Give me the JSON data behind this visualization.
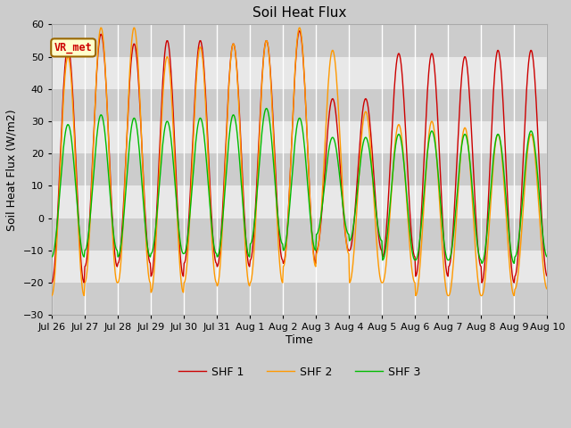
{
  "title": "Soil Heat Flux",
  "ylabel": "Soil Heat Flux (W/m2)",
  "xlabel": "Time",
  "ylim": [
    -30,
    60
  ],
  "yticks": [
    -30,
    -20,
    -10,
    0,
    10,
    20,
    30,
    40,
    50,
    60
  ],
  "x_tick_labels": [
    "Jul 26",
    "Jul 27",
    "Jul 28",
    "Jul 29",
    "Jul 30",
    "Jul 31",
    "Aug 1",
    "Aug 2",
    "Aug 3",
    "Aug 4",
    "Aug 5",
    "Aug 6",
    "Aug 7",
    "Aug 8",
    "Aug 9",
    "Aug 10"
  ],
  "shf1_color": "#cc0000",
  "shf2_color": "#ff9900",
  "shf3_color": "#00bb00",
  "legend_labels": [
    "SHF 1",
    "SHF 2",
    "SHF 3"
  ],
  "annotation_text": "VR_met",
  "annotation_facecolor": "#ffffcc",
  "annotation_edgecolor": "#996600",
  "fig_facecolor": "#cccccc",
  "plot_facecolor": "#ffffff",
  "band_dark": "#cccccc",
  "band_light": "#e8e8e8",
  "n_days": 15,
  "pts_per_day": 48,
  "shf1_peaks": [
    53,
    57,
    54,
    55,
    55,
    54,
    55,
    58,
    37,
    37,
    51,
    51,
    50,
    52,
    52
  ],
  "shf1_troughs": [
    -20,
    -15,
    -14,
    -18,
    -14,
    -15,
    -13,
    -14,
    -10,
    -10,
    -12,
    -18,
    -15,
    -20,
    -18
  ],
  "shf2_peaks": [
    50,
    59,
    59,
    50,
    53,
    54,
    55,
    59,
    52,
    33,
    29,
    30,
    28,
    26,
    26
  ],
  "shf2_troughs": [
    -24,
    -20,
    -20,
    -23,
    -20,
    -21,
    -20,
    -15,
    -11,
    -20,
    -20,
    -24,
    -24,
    -24,
    -22
  ],
  "shf3_peaks": [
    29,
    32,
    31,
    30,
    31,
    32,
    34,
    31,
    25,
    25,
    26,
    27,
    26,
    26,
    27
  ],
  "shf3_troughs": [
    -12,
    -10,
    -12,
    -11,
    -11,
    -12,
    -8,
    -10,
    -5,
    -7,
    -13,
    -13,
    -13,
    -14,
    -12
  ]
}
